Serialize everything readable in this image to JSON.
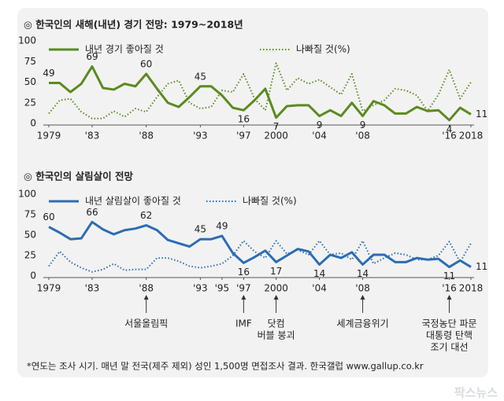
{
  "chart_data": [
    {
      "type": "line",
      "title": "◎  한국인의 새해(내년) 경기 전망: 1979~2018년",
      "x": [
        1979,
        1980,
        1981,
        1982,
        1983,
        1984,
        1985,
        1986,
        1987,
        1988,
        1989,
        1990,
        1991,
        1992,
        1993,
        1994,
        1995,
        1996,
        1997,
        1998,
        1999,
        2000,
        2001,
        2002,
        2003,
        2004,
        2005,
        2006,
        2007,
        2008,
        2009,
        2010,
        2011,
        2012,
        2013,
        2014,
        2015,
        2016,
        2017,
        2018
      ],
      "series": [
        {
          "name": "내년 경기 좋아질 것",
          "color": "#5b8a1f",
          "style": "solid",
          "values": [
            49,
            49,
            38,
            48,
            69,
            43,
            41,
            48,
            45,
            60,
            42,
            25,
            20,
            32,
            45,
            45,
            34,
            19,
            16,
            28,
            42,
            7,
            21,
            22,
            22,
            9,
            16,
            9,
            25,
            9,
            27,
            22,
            12,
            12,
            20,
            15,
            16,
            4,
            19,
            11
          ],
          "value_labels": [
            "49",
            null,
            null,
            null,
            "69",
            null,
            null,
            null,
            null,
            "60",
            null,
            null,
            null,
            null,
            "45",
            null,
            null,
            null,
            "16",
            null,
            null,
            "7",
            null,
            null,
            null,
            "9",
            null,
            null,
            null,
            "9",
            null,
            null,
            null,
            null,
            null,
            null,
            null,
            "4",
            null,
            "11"
          ]
        },
        {
          "name": "나빠질 것(%)",
          "color": "#5b8a1f",
          "style": "dotted",
          "values": [
            12,
            28,
            30,
            14,
            6,
            6,
            15,
            8,
            18,
            14,
            32,
            48,
            52,
            25,
            18,
            20,
            40,
            38,
            60,
            30,
            16,
            73,
            40,
            55,
            48,
            53,
            44,
            35,
            60,
            15,
            22,
            28,
            42,
            40,
            34,
            15,
            35,
            65,
            30,
            50
          ]
        }
      ],
      "xlim": [
        1979,
        2018
      ],
      "xticks": [
        1979,
        {
          "value": 1983,
          "label": "'83"
        },
        {
          "value": 1988,
          "label": "'88"
        },
        {
          "value": 1993,
          "label": "'93"
        },
        {
          "value": 1997,
          "label": "'97"
        },
        2000,
        {
          "value": 2004,
          "label": "'04"
        },
        {
          "value": 2008,
          "label": "'08"
        },
        {
          "value": 2016,
          "label": "'16"
        },
        2018
      ],
      "ylim": [
        0,
        100
      ],
      "yticks": [
        0,
        25,
        50,
        75,
        100
      ],
      "grid": false
    },
    {
      "type": "line",
      "title": "◎  한국인의 살림살이 전망",
      "x": [
        1979,
        1980,
        1981,
        1982,
        1983,
        1984,
        1985,
        1986,
        1987,
        1988,
        1989,
        1990,
        1991,
        1992,
        1993,
        1994,
        1995,
        1996,
        1997,
        1998,
        1999,
        2000,
        2001,
        2002,
        2003,
        2004,
        2005,
        2006,
        2007,
        2008,
        2009,
        2010,
        2011,
        2012,
        2013,
        2014,
        2015,
        2016,
        2017,
        2018
      ],
      "series": [
        {
          "name": "내년 살림살이 좋아질 것",
          "color": "#2b6db4",
          "style": "solid",
          "values": [
            60,
            53,
            45,
            46,
            66,
            57,
            51,
            56,
            58,
            62,
            56,
            44,
            40,
            36,
            45,
            45,
            49,
            28,
            16,
            23,
            31,
            17,
            25,
            33,
            30,
            14,
            26,
            22,
            29,
            14,
            26,
            26,
            17,
            17,
            22,
            20,
            21,
            11,
            19,
            11
          ],
          "value_labels": [
            "60",
            null,
            null,
            null,
            "66",
            null,
            null,
            null,
            null,
            "62",
            null,
            null,
            null,
            null,
            "45",
            null,
            "49",
            null,
            "16",
            null,
            null,
            "17",
            null,
            null,
            null,
            "14",
            null,
            null,
            null,
            "14",
            null,
            null,
            null,
            null,
            null,
            null,
            null,
            "11",
            null,
            "11"
          ]
        },
        {
          "name": "나빠질 것(%)",
          "color": "#2b6db4",
          "style": "dotted",
          "values": [
            12,
            30,
            17,
            10,
            5,
            8,
            15,
            7,
            8,
            8,
            22,
            22,
            18,
            12,
            10,
            12,
            15,
            25,
            43,
            30,
            22,
            43,
            27,
            32,
            26,
            43,
            26,
            28,
            20,
            43,
            15,
            22,
            28,
            26,
            20,
            20,
            25,
            42,
            17,
            40
          ]
        }
      ],
      "xlim": [
        1979,
        2018
      ],
      "xticks": [
        1979,
        {
          "value": 1983,
          "label": "'83"
        },
        {
          "value": 1988,
          "label": "'88"
        },
        {
          "value": 1993,
          "label": "'93"
        },
        {
          "value": 1995,
          "label": "'95"
        },
        {
          "value": 1997,
          "label": "'97"
        },
        2000,
        {
          "value": 2004,
          "label": "'04"
        },
        {
          "value": 2008,
          "label": "'08"
        },
        {
          "value": 2016,
          "label": "'16"
        },
        2018
      ],
      "ylim": [
        0,
        100
      ],
      "yticks": [
        0,
        25,
        50,
        75,
        100
      ],
      "grid": false,
      "annotations": [
        {
          "x": 1988,
          "lines": [
            "서울올림픽"
          ]
        },
        {
          "x": 1997,
          "lines": [
            "IMF"
          ]
        },
        {
          "x": 2000,
          "lines": [
            "닷컴",
            "버블 붕괴"
          ]
        },
        {
          "x": 2008,
          "lines": [
            "세계금융위기"
          ]
        },
        {
          "x": 2016,
          "lines": [
            "국정농단 파문",
            "대통령 탄핵",
            "조기 대선"
          ]
        }
      ]
    }
  ],
  "footnote": "*연도는 조사 시기. 매년 말 전국(제주 제외) 성인 1,500명 면접조사 결과. 한국갤럽 www.gallup.co.kr",
  "watermark": "팍스뉴스"
}
